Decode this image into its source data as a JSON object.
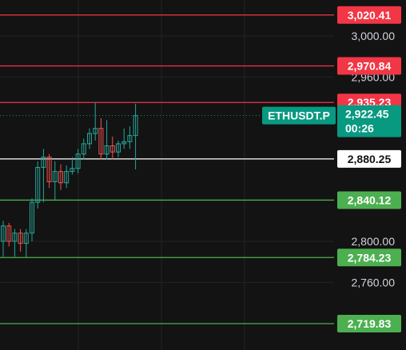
{
  "chart_data": {
    "type": "candlestick",
    "symbol": "ETHUSDT.P",
    "current_price": "2,922.45",
    "countdown": "00:26",
    "y_ticks": [
      "3,000.00",
      "2,960.00",
      "2,800.00",
      "2,760.00"
    ],
    "y_tick_values": [
      3000,
      2960,
      2800,
      2760
    ],
    "levels": [
      {
        "label": "3,020.41",
        "value": 3020.41,
        "kind": "resistance"
      },
      {
        "label": "2,970.84",
        "value": 2970.84,
        "kind": "resistance"
      },
      {
        "label": "2,935.23",
        "value": 2935.23,
        "kind": "resistance"
      },
      {
        "label": "2,880.25",
        "value": 2880.25,
        "kind": "pivot"
      },
      {
        "label": "2,840.12",
        "value": 2840.12,
        "kind": "support"
      },
      {
        "label": "2,784.23",
        "value": 2784.23,
        "kind": "support"
      },
      {
        "label": "2,719.83",
        "value": 2719.83,
        "kind": "support"
      }
    ],
    "candles": [
      {
        "o": 2800,
        "h": 2820,
        "l": 2785,
        "c": 2815
      },
      {
        "o": 2815,
        "h": 2818,
        "l": 2795,
        "c": 2800
      },
      {
        "o": 2800,
        "h": 2812,
        "l": 2785,
        "c": 2808
      },
      {
        "o": 2808,
        "h": 2812,
        "l": 2790,
        "c": 2798
      },
      {
        "o": 2798,
        "h": 2812,
        "l": 2784,
        "c": 2808
      },
      {
        "o": 2808,
        "h": 2842,
        "l": 2800,
        "c": 2838
      },
      {
        "o": 2838,
        "h": 2878,
        "l": 2832,
        "c": 2872
      },
      {
        "o": 2872,
        "h": 2890,
        "l": 2838,
        "c": 2882
      },
      {
        "o": 2882,
        "h": 2885,
        "l": 2852,
        "c": 2858
      },
      {
        "o": 2858,
        "h": 2878,
        "l": 2840,
        "c": 2868
      },
      {
        "o": 2868,
        "h": 2875,
        "l": 2850,
        "c": 2857
      },
      {
        "o": 2857,
        "h": 2874,
        "l": 2852,
        "c": 2868
      },
      {
        "o": 2868,
        "h": 2882,
        "l": 2865,
        "c": 2871
      },
      {
        "o": 2871,
        "h": 2890,
        "l": 2866,
        "c": 2885
      },
      {
        "o": 2885,
        "h": 2900,
        "l": 2880,
        "c": 2895
      },
      {
        "o": 2895,
        "h": 2910,
        "l": 2890,
        "c": 2905
      },
      {
        "o": 2905,
        "h": 2935,
        "l": 2898,
        "c": 2910
      },
      {
        "o": 2910,
        "h": 2920,
        "l": 2880,
        "c": 2885
      },
      {
        "o": 2885,
        "h": 2918,
        "l": 2880,
        "c": 2893
      },
      {
        "o": 2893,
        "h": 2902,
        "l": 2880,
        "c": 2887
      },
      {
        "o": 2887,
        "h": 2898,
        "l": 2882,
        "c": 2895
      },
      {
        "o": 2895,
        "h": 2910,
        "l": 2890,
        "c": 2897
      },
      {
        "o": 2897,
        "h": 2912,
        "l": 2890,
        "c": 2903
      },
      {
        "o": 2903,
        "h": 2934,
        "l": 2870,
        "c": 2922.45
      }
    ]
  },
  "colors": {
    "background": "#131313",
    "up": "#26a69a",
    "down": "#ef5350",
    "resistance": "#f23645",
    "support": "#4caf50",
    "pivot": "#ffffff",
    "price_tag": "#089981"
  }
}
